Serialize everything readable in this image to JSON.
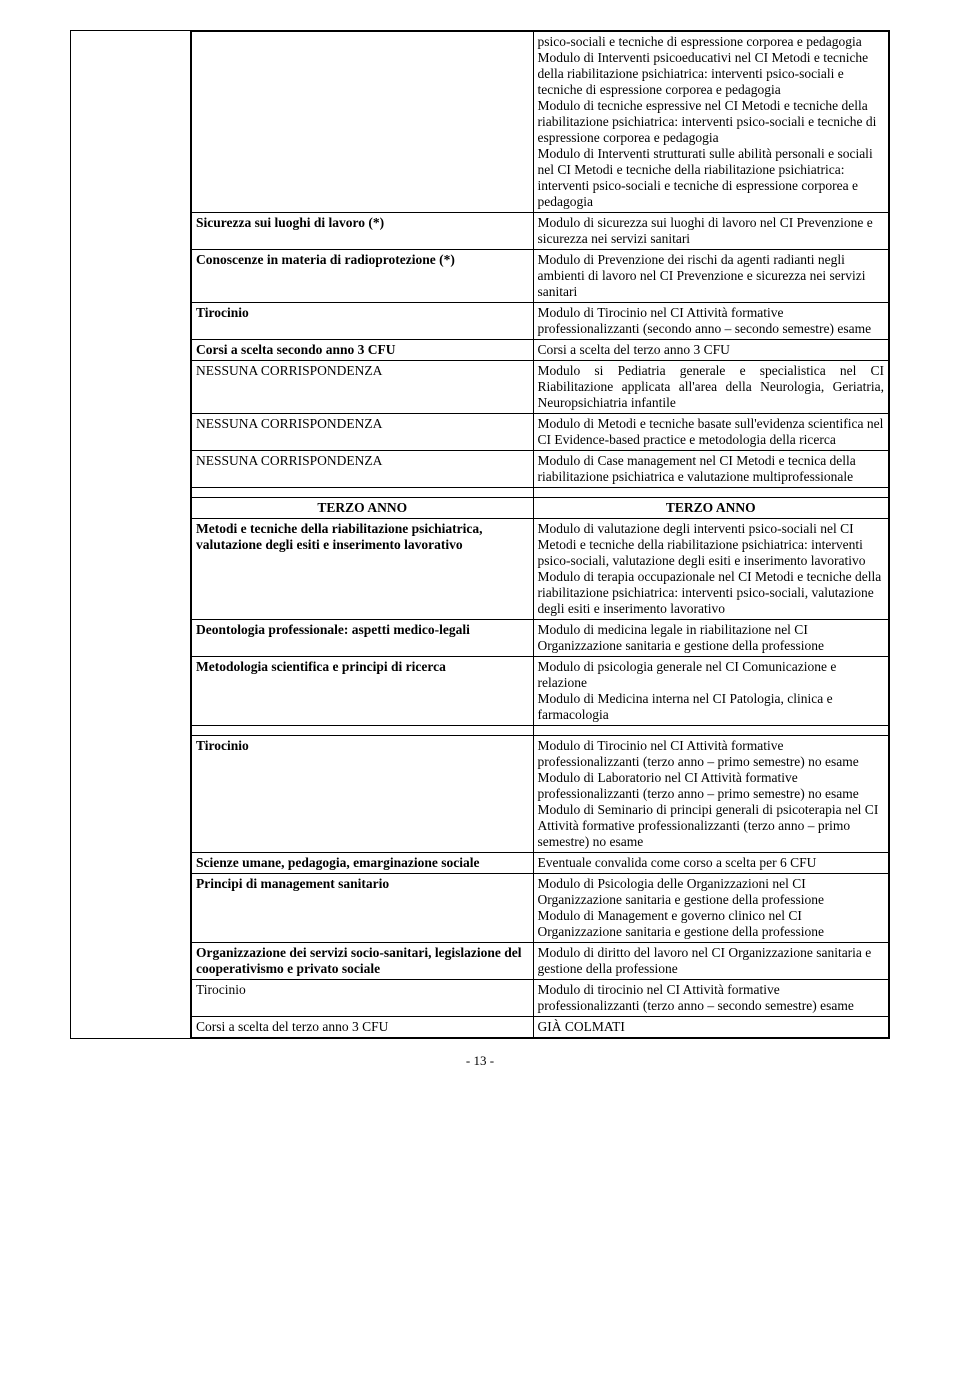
{
  "footer": "- 13 -",
  "rows": [
    {
      "l": "",
      "r": "psico-sociali e tecniche di espressione corporea e pedagogia\nModulo di Interventi psicoeducativi nel CI Metodi e tecniche della riabilitazione psichiatrica: interventi psico-sociali e tecniche di espressione corporea e pedagogia\nModulo di tecniche espressive nel CI Metodi e tecniche della riabilitazione psichiatrica: interventi psico-sociali e tecniche di espressione corporea e pedagogia\nModulo di Interventi strutturati sulle abilità personali e sociali nel CI Metodi e tecniche della riabilitazione psichiatrica: interventi psico-sociali e tecniche di espressione corporea e pedagogia"
    },
    {
      "l": "Sicurezza sui luoghi di lavoro (*)",
      "lb": true,
      "r": "Modulo di sicurezza sui luoghi di lavoro nel CI Prevenzione e sicurezza nei servizi sanitari"
    },
    {
      "l": "Conoscenze in materia di radioprotezione (*)",
      "lb": true,
      "r": "Modulo di Prevenzione dei rischi da agenti radianti negli ambienti di lavoro nel CI Prevenzione e sicurezza nei servizi sanitari"
    },
    {
      "l": "Tirocinio",
      "lb": true,
      "r": "Modulo di Tirocinio nel CI Attività formative professionalizzanti (secondo anno – secondo semestre) esame"
    },
    {
      "l": "Corsi a scelta secondo anno 3 CFU",
      "lb": true,
      "r": "Corsi a scelta del terzo anno 3 CFU"
    },
    {
      "l": "NESSUNA CORRISPONDENZA",
      "r": "Modulo si Pediatria generale e specialistica nel CI Riabilitazione applicata all'area della Neurologia, Geriatria, Neuropsichiatria infantile",
      "rj": true
    },
    {
      "l": "NESSUNA CORRISPONDENZA",
      "r": "Modulo di Metodi e tecniche basate sull'evidenza scientifica nel CI Evidence-based practice e metodologia della ricerca"
    },
    {
      "l": "NESSUNA CORRISPONDENZA",
      "r": "Modulo di Case management nel CI Metodi e tecnica della riabilitazione psichiatrica e valutazione multiprofessionale"
    },
    {
      "spacer": true
    },
    {
      "l": "TERZO ANNO",
      "lb": true,
      "lc": true,
      "r": "TERZO ANNO",
      "rb": true,
      "rc": true
    },
    {
      "l": "Metodi e tecniche della riabilitazione psichiatrica, valutazione degli esiti e inserimento lavorativo",
      "lb": true,
      "r": "Modulo di valutazione degli interventi psico-sociali nel CI Metodi e tecniche della riabilitazione psichiatrica: interventi psico-sociali, valutazione degli esiti e inserimento lavorativo\nModulo di terapia occupazionale nel CI Metodi e tecniche della riabilitazione psichiatrica: interventi psico-sociali, valutazione degli esiti e inserimento lavorativo"
    },
    {
      "l": "Deontologia professionale: aspetti medico-legali",
      "lb": true,
      "r": "Modulo di medicina legale in riabilitazione nel CI Organizzazione sanitaria e gestione della professione"
    },
    {
      "l": "Metodologia scientifica e principi di ricerca",
      "lb": true,
      "r": "Modulo di psicologia generale nel CI Comunicazione e relazione\nModulo di Medicina interna nel CI Patologia, clinica e farmacologia"
    },
    {
      "spacer": true
    },
    {
      "l": "Tirocinio",
      "lb": true,
      "r": "Modulo di Tirocinio nel CI Attività formative professionalizzanti (terzo anno – primo semestre) no esame\nModulo di Laboratorio nel CI Attività formative professionalizzanti (terzo anno – primo semestre) no esame\nModulo di Seminario di principi generali di psicoterapia nel CI Attività formative professionalizzanti (terzo anno – primo semestre) no esame"
    },
    {
      "l": "Scienze umane, pedagogia, emarginazione sociale",
      "lb": true,
      "r": "Eventuale convalida come corso a scelta per 6 CFU"
    },
    {
      "l": "Principi di management sanitario",
      "lb": true,
      "r": "Modulo di Psicologia delle Organizzazioni nel CI Organizzazione sanitaria e gestione della professione\nModulo di Management e governo clinico nel CI Organizzazione sanitaria e gestione della professione"
    },
    {
      "l": "Organizzazione dei servizi socio-sanitari, legislazione del cooperativismo e privato sociale",
      "lb": true,
      "r": "Modulo di diritto del lavoro nel CI Organizzazione sanitaria e gestione della professione"
    },
    {
      "l": "Tirocinio",
      "r": "Modulo di tirocinio nel CI Attività formative professionalizzanti (terzo anno – secondo semestre) esame"
    },
    {
      "l": "Corsi a scelta del terzo anno 3 CFU",
      "r": "GIÀ COLMATI"
    }
  ]
}
